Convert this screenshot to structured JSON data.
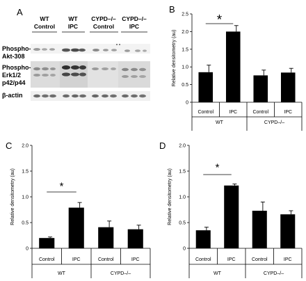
{
  "panel_letters": {
    "a": "A",
    "b": "B",
    "c": "C",
    "d": "D"
  },
  "blot": {
    "column_groups": [
      {
        "line1": "WT",
        "line2": "Control"
      },
      {
        "line1": "WT",
        "line2": "IPC"
      },
      {
        "line1": "CYPD–/–",
        "line2": "Control"
      },
      {
        "line1": "CYPD–/–",
        "line2": "IPC"
      }
    ],
    "row_labels": {
      "akt_1": "Phospho-",
      "akt_2": "Akt-308",
      "erk_1": "Phospho-",
      "erk_2": "Erk1/2",
      "erk_3": "p42/p44",
      "actin": "β-actin"
    }
  },
  "chart_data": [
    {
      "panel": "B",
      "type": "bar",
      "categories": [
        "Control",
        "IPC",
        "Control",
        "IPC"
      ],
      "groups": [
        "WT",
        "CYPD–/–"
      ],
      "values": [
        0.85,
        2.0,
        0.76,
        0.84
      ],
      "errors": [
        0.2,
        0.17,
        0.15,
        0.12
      ],
      "ylabel": "Relative densitometry (au)",
      "ylim": [
        0,
        2.5
      ],
      "yticks": [
        "0",
        "0.5",
        "1.0",
        "1.5",
        "2.0",
        "2.5"
      ],
      "significance": "*",
      "grid": false
    },
    {
      "panel": "C",
      "type": "bar",
      "categories": [
        "Control",
        "IPC",
        "Control",
        "IPC"
      ],
      "groups": [
        "WT",
        "CYPD–/–"
      ],
      "values": [
        0.2,
        0.79,
        0.41,
        0.37
      ],
      "errors": [
        0.02,
        0.1,
        0.12,
        0.08
      ],
      "ylabel": "Relative densitometry (au)",
      "ylim": [
        0,
        2.0
      ],
      "yticks": [
        "0",
        "0.5",
        "1.0",
        "1.5",
        "2.0"
      ],
      "significance": "*",
      "grid": false
    },
    {
      "panel": "D",
      "type": "bar",
      "categories": [
        "Control",
        "IPC",
        "Control",
        "IPC"
      ],
      "groups": [
        "WT",
        "CYPD–/–"
      ],
      "values": [
        0.35,
        1.22,
        0.73,
        0.66
      ],
      "errors": [
        0.06,
        0.03,
        0.17,
        0.07
      ],
      "ylabel": "Relative densitometry (au)",
      "ylim": [
        0,
        2.0
      ],
      "yticks": [
        "0",
        "0.5",
        "1.0",
        "1.5",
        "2.0"
      ],
      "significance": "*",
      "grid": false
    }
  ]
}
